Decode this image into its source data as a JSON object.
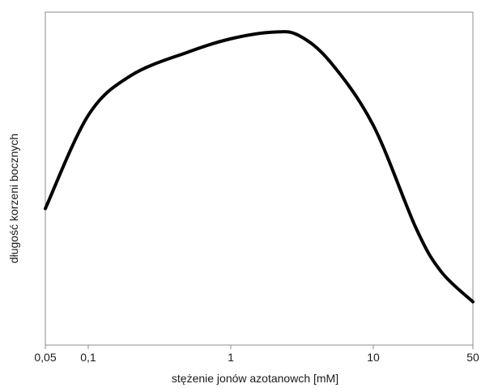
{
  "chart_data": {
    "type": "line",
    "title": "",
    "xlabel": "stężenie jonów azotanowch [mM]",
    "ylabel": "długość korzeni bocznych",
    "x_scale": "log",
    "xlim": [
      0.05,
      50
    ],
    "ylim": [
      0,
      100
    ],
    "y_ticks_shown": false,
    "grid": false,
    "legend": "none",
    "x_ticks": [
      {
        "value": 0.05,
        "label": "0,05"
      },
      {
        "value": 0.1,
        "label": "0,1"
      },
      {
        "value": 1,
        "label": "1"
      },
      {
        "value": 10,
        "label": "10"
      },
      {
        "value": 50,
        "label": "50"
      }
    ],
    "series": [
      {
        "color": "#000000",
        "x": [
          0.05,
          0.1,
          0.2,
          0.5,
          1,
          2,
          3,
          5,
          10,
          20,
          30,
          50
        ],
        "y": [
          41,
          69,
          81,
          88,
          92,
          94,
          93,
          85,
          66,
          35,
          22,
          13
        ]
      }
    ]
  }
}
